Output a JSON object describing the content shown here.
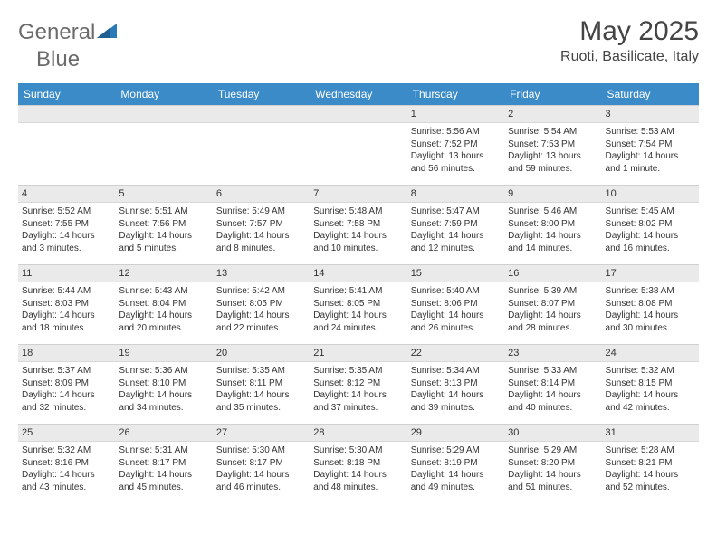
{
  "logo": {
    "text_gray": "General",
    "text_blue": "Blue"
  },
  "header": {
    "month_title": "May 2025",
    "location": "Ruoti, Basilicate, Italy"
  },
  "colors": {
    "header_bg": "#3b8bc9",
    "header_fg": "#ffffff",
    "daynum_bg": "#eaeaea",
    "border": "#d0d0d0",
    "logo_gray": "#6b6b6b",
    "logo_blue": "#2a7ab8"
  },
  "day_headers": [
    "Sunday",
    "Monday",
    "Tuesday",
    "Wednesday",
    "Thursday",
    "Friday",
    "Saturday"
  ],
  "weeks": [
    [
      {
        "n": "",
        "sr": "",
        "ss": "",
        "dl": ""
      },
      {
        "n": "",
        "sr": "",
        "ss": "",
        "dl": ""
      },
      {
        "n": "",
        "sr": "",
        "ss": "",
        "dl": ""
      },
      {
        "n": "",
        "sr": "",
        "ss": "",
        "dl": ""
      },
      {
        "n": "1",
        "sr": "Sunrise: 5:56 AM",
        "ss": "Sunset: 7:52 PM",
        "dl": "Daylight: 13 hours and 56 minutes."
      },
      {
        "n": "2",
        "sr": "Sunrise: 5:54 AM",
        "ss": "Sunset: 7:53 PM",
        "dl": "Daylight: 13 hours and 59 minutes."
      },
      {
        "n": "3",
        "sr": "Sunrise: 5:53 AM",
        "ss": "Sunset: 7:54 PM",
        "dl": "Daylight: 14 hours and 1 minute."
      }
    ],
    [
      {
        "n": "4",
        "sr": "Sunrise: 5:52 AM",
        "ss": "Sunset: 7:55 PM",
        "dl": "Daylight: 14 hours and 3 minutes."
      },
      {
        "n": "5",
        "sr": "Sunrise: 5:51 AM",
        "ss": "Sunset: 7:56 PM",
        "dl": "Daylight: 14 hours and 5 minutes."
      },
      {
        "n": "6",
        "sr": "Sunrise: 5:49 AM",
        "ss": "Sunset: 7:57 PM",
        "dl": "Daylight: 14 hours and 8 minutes."
      },
      {
        "n": "7",
        "sr": "Sunrise: 5:48 AM",
        "ss": "Sunset: 7:58 PM",
        "dl": "Daylight: 14 hours and 10 minutes."
      },
      {
        "n": "8",
        "sr": "Sunrise: 5:47 AM",
        "ss": "Sunset: 7:59 PM",
        "dl": "Daylight: 14 hours and 12 minutes."
      },
      {
        "n": "9",
        "sr": "Sunrise: 5:46 AM",
        "ss": "Sunset: 8:00 PM",
        "dl": "Daylight: 14 hours and 14 minutes."
      },
      {
        "n": "10",
        "sr": "Sunrise: 5:45 AM",
        "ss": "Sunset: 8:02 PM",
        "dl": "Daylight: 14 hours and 16 minutes."
      }
    ],
    [
      {
        "n": "11",
        "sr": "Sunrise: 5:44 AM",
        "ss": "Sunset: 8:03 PM",
        "dl": "Daylight: 14 hours and 18 minutes."
      },
      {
        "n": "12",
        "sr": "Sunrise: 5:43 AM",
        "ss": "Sunset: 8:04 PM",
        "dl": "Daylight: 14 hours and 20 minutes."
      },
      {
        "n": "13",
        "sr": "Sunrise: 5:42 AM",
        "ss": "Sunset: 8:05 PM",
        "dl": "Daylight: 14 hours and 22 minutes."
      },
      {
        "n": "14",
        "sr": "Sunrise: 5:41 AM",
        "ss": "Sunset: 8:05 PM",
        "dl": "Daylight: 14 hours and 24 minutes."
      },
      {
        "n": "15",
        "sr": "Sunrise: 5:40 AM",
        "ss": "Sunset: 8:06 PM",
        "dl": "Daylight: 14 hours and 26 minutes."
      },
      {
        "n": "16",
        "sr": "Sunrise: 5:39 AM",
        "ss": "Sunset: 8:07 PM",
        "dl": "Daylight: 14 hours and 28 minutes."
      },
      {
        "n": "17",
        "sr": "Sunrise: 5:38 AM",
        "ss": "Sunset: 8:08 PM",
        "dl": "Daylight: 14 hours and 30 minutes."
      }
    ],
    [
      {
        "n": "18",
        "sr": "Sunrise: 5:37 AM",
        "ss": "Sunset: 8:09 PM",
        "dl": "Daylight: 14 hours and 32 minutes."
      },
      {
        "n": "19",
        "sr": "Sunrise: 5:36 AM",
        "ss": "Sunset: 8:10 PM",
        "dl": "Daylight: 14 hours and 34 minutes."
      },
      {
        "n": "20",
        "sr": "Sunrise: 5:35 AM",
        "ss": "Sunset: 8:11 PM",
        "dl": "Daylight: 14 hours and 35 minutes."
      },
      {
        "n": "21",
        "sr": "Sunrise: 5:35 AM",
        "ss": "Sunset: 8:12 PM",
        "dl": "Daylight: 14 hours and 37 minutes."
      },
      {
        "n": "22",
        "sr": "Sunrise: 5:34 AM",
        "ss": "Sunset: 8:13 PM",
        "dl": "Daylight: 14 hours and 39 minutes."
      },
      {
        "n": "23",
        "sr": "Sunrise: 5:33 AM",
        "ss": "Sunset: 8:14 PM",
        "dl": "Daylight: 14 hours and 40 minutes."
      },
      {
        "n": "24",
        "sr": "Sunrise: 5:32 AM",
        "ss": "Sunset: 8:15 PM",
        "dl": "Daylight: 14 hours and 42 minutes."
      }
    ],
    [
      {
        "n": "25",
        "sr": "Sunrise: 5:32 AM",
        "ss": "Sunset: 8:16 PM",
        "dl": "Daylight: 14 hours and 43 minutes."
      },
      {
        "n": "26",
        "sr": "Sunrise: 5:31 AM",
        "ss": "Sunset: 8:17 PM",
        "dl": "Daylight: 14 hours and 45 minutes."
      },
      {
        "n": "27",
        "sr": "Sunrise: 5:30 AM",
        "ss": "Sunset: 8:17 PM",
        "dl": "Daylight: 14 hours and 46 minutes."
      },
      {
        "n": "28",
        "sr": "Sunrise: 5:30 AM",
        "ss": "Sunset: 8:18 PM",
        "dl": "Daylight: 14 hours and 48 minutes."
      },
      {
        "n": "29",
        "sr": "Sunrise: 5:29 AM",
        "ss": "Sunset: 8:19 PM",
        "dl": "Daylight: 14 hours and 49 minutes."
      },
      {
        "n": "30",
        "sr": "Sunrise: 5:29 AM",
        "ss": "Sunset: 8:20 PM",
        "dl": "Daylight: 14 hours and 51 minutes."
      },
      {
        "n": "31",
        "sr": "Sunrise: 5:28 AM",
        "ss": "Sunset: 8:21 PM",
        "dl": "Daylight: 14 hours and 52 minutes."
      }
    ]
  ]
}
